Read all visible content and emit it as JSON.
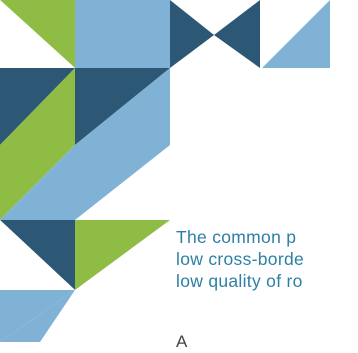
{
  "colors": {
    "green": "#8fbc45",
    "light_blue": "#7fb2d5",
    "dark_blue": "#2d5875",
    "text": "#2e7fa6"
  },
  "text": {
    "lines": [
      "The common p",
      "low cross-borde",
      "low quality of ro"
    ],
    "partial_line": "A"
  }
}
